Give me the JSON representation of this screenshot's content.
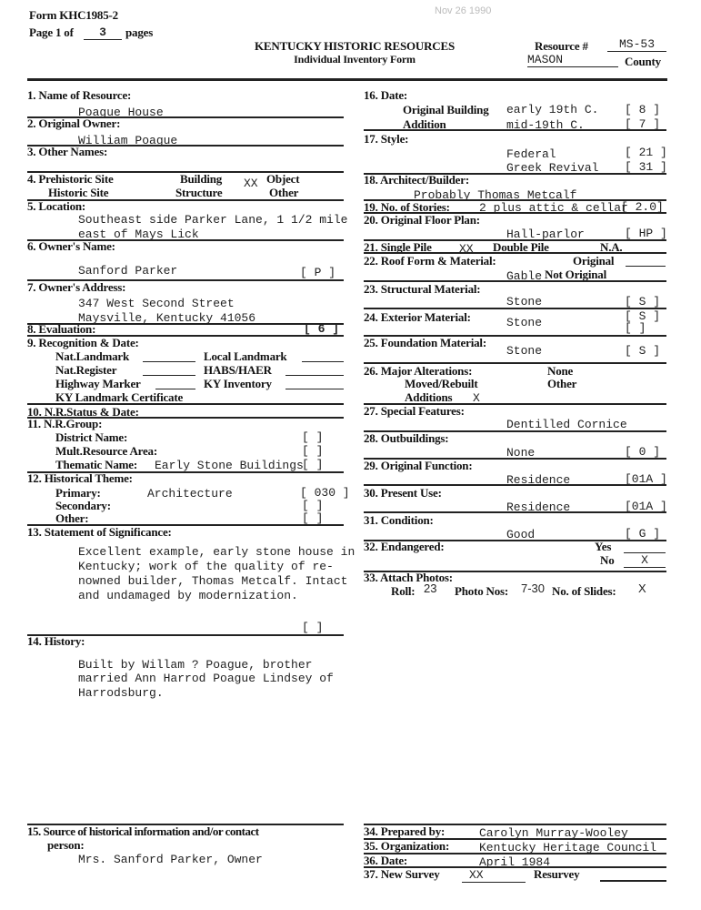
{
  "header": {
    "form_id": "Form KHC1985-2",
    "page_prefix": "Page 1 of",
    "page_total": "3",
    "page_suffix": "pages",
    "stamp": "Nov 26 1990",
    "title": "KENTUCKY HISTORIC RESOURCES",
    "subtitle": "Individual Inventory Form",
    "resource_label": "Resource #",
    "resource_value": "MS-53",
    "county_value": "MASON",
    "county_label": "County"
  },
  "left": {
    "i1": {
      "label": "1.  Name of Resource:",
      "value": "Poague House"
    },
    "i2": {
      "label": "2.  Original Owner:",
      "value": "William Poague"
    },
    "i3": {
      "label": "3.  Other Names:"
    },
    "i4": {
      "label": "4.  Prehistoric Site",
      "historic": "Historic Site",
      "building": "Building",
      "structure": "Structure",
      "mark": "XX",
      "object": "Object",
      "other": "Other"
    },
    "i5": {
      "label": "5.  Location:",
      "line1": "Southeast side Parker Lane, 1 1/2 mile",
      "line2": "east of Mays Lick"
    },
    "i6": {
      "label": "6.  Owner's Name:",
      "value": "Sanford Parker",
      "code": "[  P  ]"
    },
    "i7": {
      "label": "7.  Owner's Address:",
      "line1": "347 West Second Street",
      "line2": "Maysville, Kentucky   41056"
    },
    "i8": {
      "label": "8.  Evaluation:",
      "code": "[ 6  ]"
    },
    "i9": {
      "label": "9.  Recognition & Date:",
      "nat_landmark": "Nat.Landmark",
      "local_landmark": "Local Landmark",
      "nat_register": "Nat.Register",
      "habs": "HABS/HAER",
      "highway": "Highway Marker",
      "ky_inventory": "KY Inventory",
      "ky_cert": "KY Landmark Certificate"
    },
    "i10": {
      "label": "10. N.R.Status & Date:"
    },
    "i11": {
      "label": "11. N.R.Group:",
      "district": "District Name:",
      "mult": "Mult.Resource Area:",
      "thematic": "Thematic Name:",
      "thematic_value": "Early Stone Buildings",
      "bracket": "[      ]"
    },
    "i12": {
      "label": "12. Historical Theme:",
      "primary": "Primary:",
      "primary_value": "Architecture",
      "primary_code": "[ 030 ]",
      "secondary": "Secondary:",
      "other": "Other:",
      "bracket": "[      ]"
    },
    "i13": {
      "label": "13. Statement of Significance:",
      "lines": [
        "Excellent example, early stone house in",
        "Kentucky; work of the quality of re-",
        "nowned builder, Thomas Metcalf.  Intact",
        "and undamaged by modernization."
      ],
      "bracket": "[      ]"
    },
    "i14": {
      "label": "14. History:",
      "lines": [
        "Built by Willam ? Poague, brother",
        "married Ann Harrod Poague Lindsey of",
        "Harrodsburg."
      ]
    },
    "i15": {
      "label": "15. Source of historical information and/or contact",
      "label2": "person:",
      "value": "Mrs. Sanford Parker, Owner"
    }
  },
  "right": {
    "i16": {
      "label": "16.  Date:",
      "orig": "Original Building",
      "orig_value": "early 19th C.",
      "orig_code": "[  8  ]",
      "add": "Addition",
      "add_value": "mid-19th C.",
      "add_code": "[  7  ]"
    },
    "i17": {
      "label": "17.  Style:",
      "v1": "Federal",
      "c1": "[ 21 ]",
      "v2": "Greek Revival",
      "c2": "[ 31 ]"
    },
    "i18": {
      "label": "18.  Architect/Builder:",
      "value": "Probably Thomas Metcalf"
    },
    "i19": {
      "label": "19.  No. of Stories:",
      "value": "2 plus attic & cellar",
      "code": "[ 2.0]"
    },
    "i20": {
      "label": "20.  Original Floor Plan:",
      "value": "Hall-parlor",
      "code": "[ HP ]"
    },
    "i21": {
      "label": "21.  Single Pile",
      "mark": "XX",
      "double": "Double Pile",
      "na": "N.A."
    },
    "i22": {
      "label": "22.  Roof Form & Material:",
      "original": "Original",
      "value": "Gable",
      "not_original": "Not Original"
    },
    "i23": {
      "label": "23.  Structural Material:",
      "value": "Stone",
      "code": "[  S  ]"
    },
    "i24": {
      "label": "24.  Exterior Material:",
      "value": "Stone",
      "code": "[  S  ]",
      "code2": "[       ]"
    },
    "i25": {
      "label": "25.  Foundation Material:",
      "value": "Stone",
      "code": "[  S  ]"
    },
    "i26": {
      "label": "26.  Major Alterations:",
      "none": "None",
      "moved": "Moved/Rebuilt",
      "other": "Other",
      "additions": "Additions",
      "mark": "X"
    },
    "i27": {
      "label": "27.  Special Features:",
      "value": "Dentilled Cornice"
    },
    "i28": {
      "label": "28.  Outbuildings:",
      "value": "None",
      "code": "[  0  ]"
    },
    "i29": {
      "label": "29.  Original Function:",
      "value": "Residence",
      "code": "[01A ]"
    },
    "i30": {
      "label": "30.  Present Use:",
      "value": "Residence",
      "code": "[01A ]"
    },
    "i31": {
      "label": "31.  Condition:",
      "value": "Good",
      "code": "[  G  ]"
    },
    "i32": {
      "label": "32.  Endangered:",
      "yes": "Yes",
      "no": "No",
      "no_mark": "X"
    },
    "i33": {
      "label": "33.  Attach Photos:",
      "roll": "Roll:",
      "roll_value": "23",
      "photos": "Photo Nos:",
      "photos_value": "7-30",
      "slides": "No. of Slides:",
      "slides_value": "X"
    },
    "i34": {
      "label": "34.  Prepared by:",
      "value": "Carolyn Murray-Wooley"
    },
    "i35": {
      "label": "35.  Organization:",
      "value": "Kentucky Heritage Council"
    },
    "i36": {
      "label": "36.  Date:",
      "value": "April 1984"
    },
    "i37": {
      "label": "37.  New Survey",
      "value": "XX",
      "resurvey": "Resurvey"
    }
  }
}
